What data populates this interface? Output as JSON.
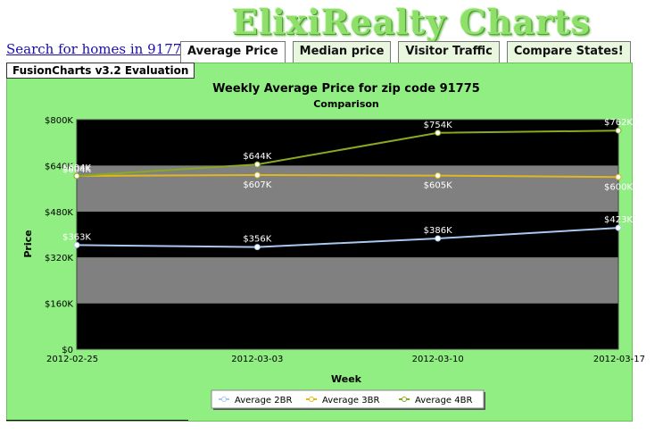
{
  "header": {
    "logo_text": "ElixiRealty Charts"
  },
  "search_link": "Search for homes in 91775",
  "tabs": [
    {
      "label": "Average Price",
      "active": true
    },
    {
      "label": "Median price",
      "active": false
    },
    {
      "label": "Visitor Traffic",
      "active": false
    },
    {
      "label": "Compare States!",
      "active": false
    }
  ],
  "evaluation_badge": "FusionCharts v3.2 Evaluation",
  "chart_data": {
    "type": "line",
    "title": "Weekly Average Price for zip code 91775",
    "subtitle": "Comparison",
    "xlabel": "Week",
    "ylabel": "Price",
    "categories": [
      "2012-02-25",
      "2012-03-03",
      "2012-03-10",
      "2012-03-17"
    ],
    "ylim": [
      0,
      800000
    ],
    "yticks": [
      0,
      160000,
      320000,
      480000,
      640000,
      800000
    ],
    "ytick_labels": [
      "$0",
      "$160K",
      "$320K",
      "$480K",
      "$640K",
      "$800K"
    ],
    "series": [
      {
        "name": "Average 2BR",
        "color": "#a8c8f0",
        "values": [
          363000,
          356000,
          386000,
          423000
        ],
        "labels": [
          "$363K",
          "$356K",
          "$386K",
          "$423K"
        ]
      },
      {
        "name": "Average 3BR",
        "color": "#e0b820",
        "values": [
          604000,
          607000,
          605000,
          600000
        ],
        "labels": [
          "$604K",
          "$607K",
          "$605K",
          "$600K"
        ]
      },
      {
        "name": "Average 4BR",
        "color": "#8aa820",
        "values": [
          604000,
          644000,
          754000,
          762000
        ],
        "labels": [
          "$604K",
          "$644K",
          "$754K",
          "$762K"
        ]
      }
    ],
    "legend_position": "bottom",
    "band_colors": [
      "#000000",
      "#808080"
    ]
  }
}
